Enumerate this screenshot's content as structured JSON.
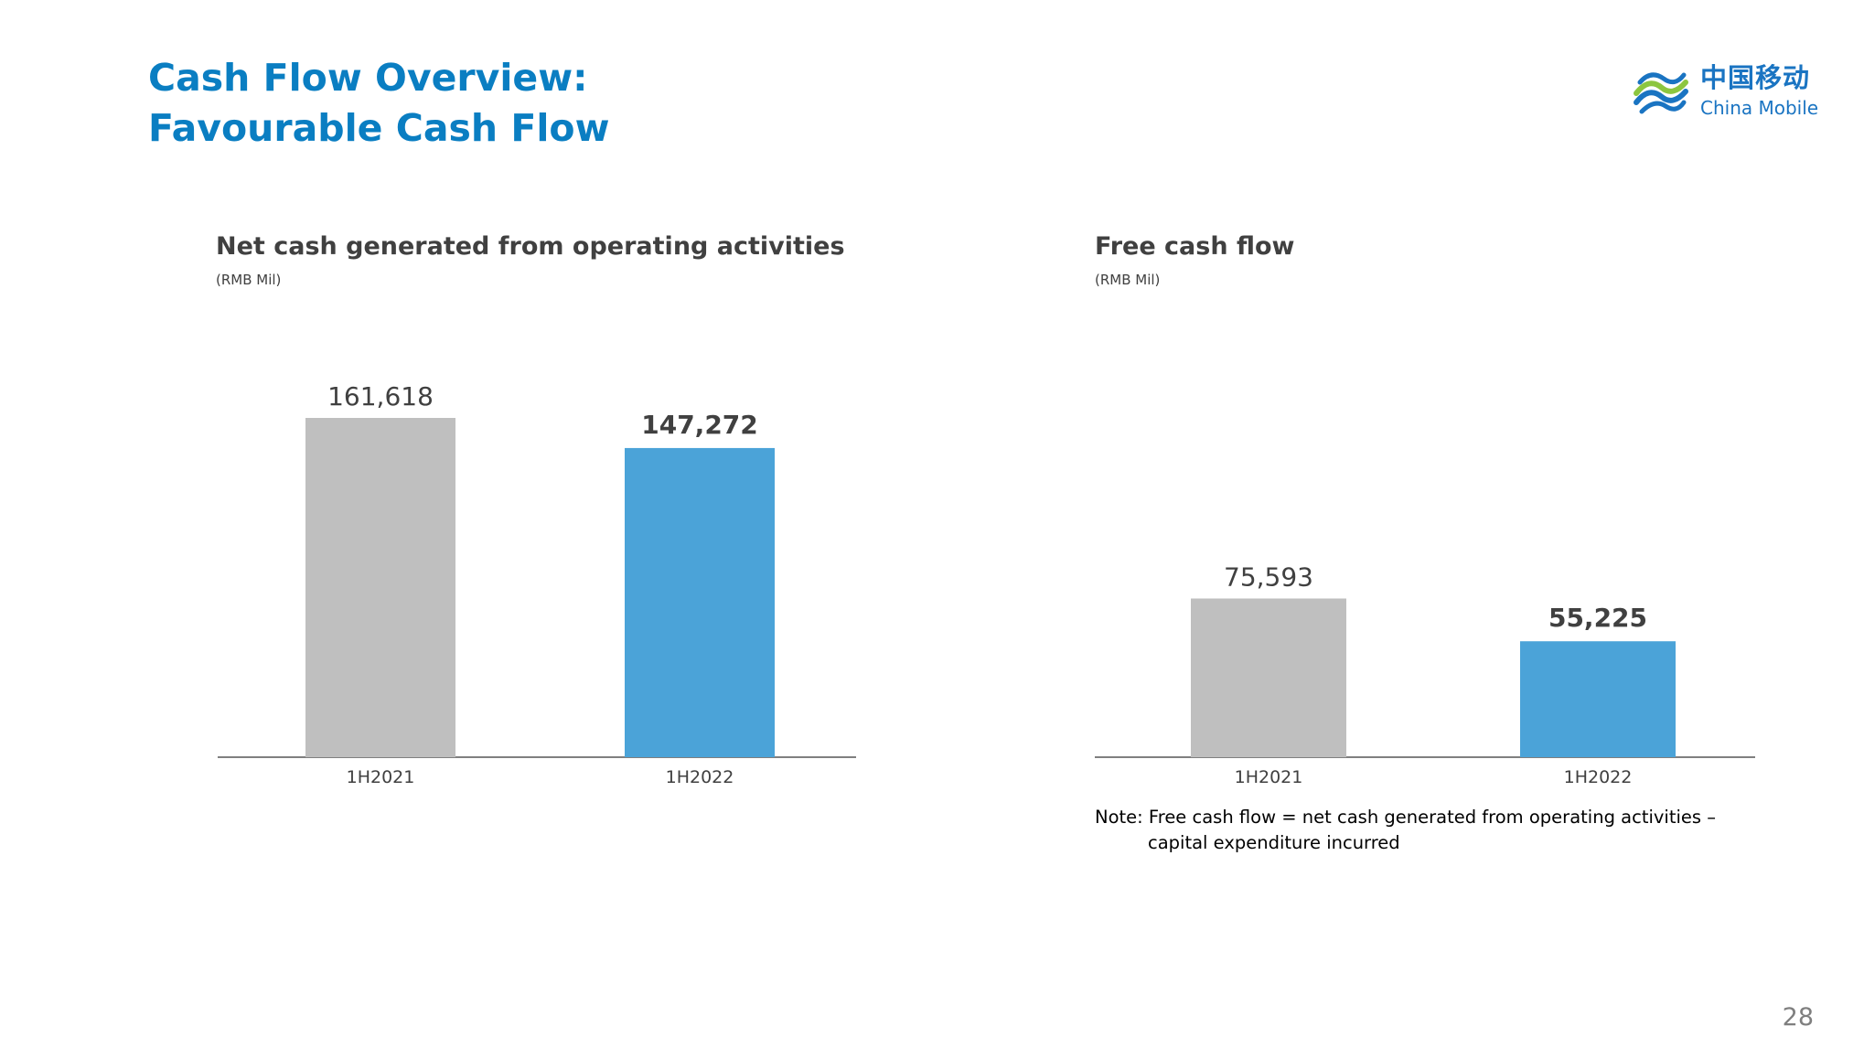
{
  "slide": {
    "title_line1": "Cash Flow Overview:",
    "title_line2": "Favourable Cash Flow",
    "page_number": "28",
    "accent_color": "#0a7ec2"
  },
  "logo": {
    "name_cn": "中国移动",
    "name_en": "China Mobile"
  },
  "charts": {
    "left": {
      "title": "Net cash generated from operating activities",
      "unit": "(RMB Mil)"
    },
    "right": {
      "title": "Free cash flow",
      "unit": "(RMB Mil)"
    }
  },
  "note": {
    "line1": "Note: Free cash flow = net cash generated from operating activities –",
    "line2": "capital expenditure incurred"
  },
  "chart_data": [
    {
      "type": "bar",
      "title": "Net cash generated from operating activities",
      "subtitle": "(RMB Mil)",
      "categories": [
        "1H2021",
        "1H2022"
      ],
      "values": [
        161618,
        147272
      ],
      "value_labels": [
        "161,618",
        "147,272"
      ],
      "bar_colors": [
        "#bfbfbf",
        "#4ba3d8"
      ],
      "bold_labels": [
        false,
        true
      ],
      "ylim": [
        0,
        161618
      ],
      "grid": false,
      "legend": "none"
    },
    {
      "type": "bar",
      "title": "Free cash flow",
      "subtitle": "(RMB Mil)",
      "categories": [
        "1H2021",
        "1H2022"
      ],
      "values": [
        75593,
        55225
      ],
      "value_labels": [
        "75,593",
        "55,225"
      ],
      "bar_colors": [
        "#bfbfbf",
        "#4ba3d8"
      ],
      "bold_labels": [
        false,
        true
      ],
      "ylim": [
        0,
        161618
      ],
      "grid": false,
      "legend": "none"
    }
  ]
}
